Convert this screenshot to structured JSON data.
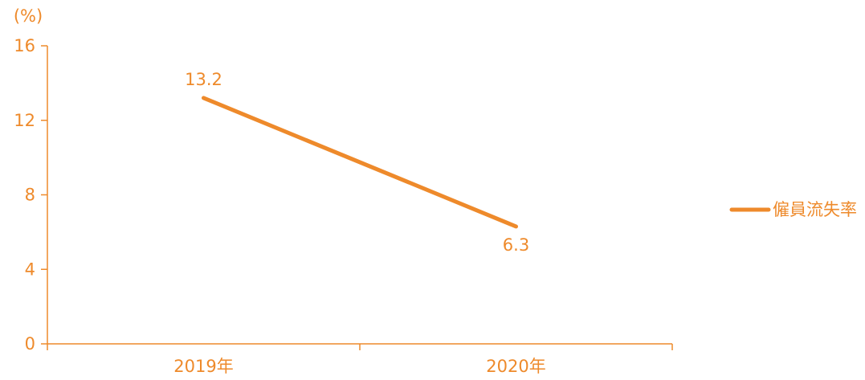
{
  "colors": {
    "series": "#ee8a2b",
    "axis": "#ee8a2b",
    "text": "#ee8a2b"
  },
  "chart_data": {
    "type": "line",
    "ylabel": "(%)",
    "xlabel": "",
    "categories": [
      "2019年",
      "2020年"
    ],
    "yticks": [
      "0",
      "4",
      "8",
      "12",
      "16"
    ],
    "ylim": [
      0,
      16
    ],
    "grid": false,
    "legend_position": "right",
    "series": [
      {
        "name": "僱員流失率",
        "values": [
          13.2,
          6.3
        ],
        "labels": [
          "13.2",
          "6.3"
        ]
      }
    ]
  }
}
